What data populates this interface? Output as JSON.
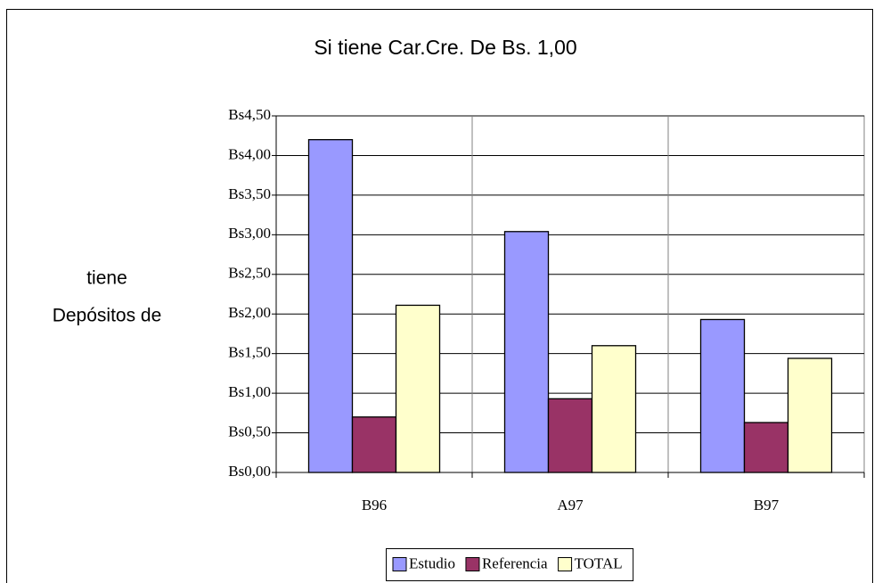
{
  "chart_data": {
    "type": "bar",
    "title": "Si tiene Car.Cre. De Bs. 1,00",
    "ylabel": [
      "tiene",
      "Depósitos de"
    ],
    "categories": [
      "B96",
      "A97",
      "B97"
    ],
    "series": [
      {
        "name": "Estudio",
        "color": "#9999ff",
        "values": [
          4.2,
          3.04,
          1.93
        ]
      },
      {
        "name": "Referencia",
        "color": "#993366",
        "values": [
          0.7,
          0.93,
          0.63
        ]
      },
      {
        "name": "TOTAL",
        "color": "#ffffcc",
        "values": [
          2.11,
          1.6,
          1.44
        ]
      }
    ],
    "ylim": [
      0,
      4.5
    ],
    "yticks": [
      {
        "value": 0,
        "label": "Bs0,00"
      },
      {
        "value": 0.5,
        "label": "Bs0,50"
      },
      {
        "value": 1,
        "label": "Bs1,00"
      },
      {
        "value": 1.5,
        "label": "Bs1,50"
      },
      {
        "value": 2,
        "label": "Bs2,00"
      },
      {
        "value": 2.5,
        "label": "Bs2,50"
      },
      {
        "value": 3,
        "label": "Bs3,00"
      },
      {
        "value": 3.5,
        "label": "Bs3,50"
      },
      {
        "value": 4,
        "label": "Bs4,00"
      },
      {
        "value": 4.5,
        "label": "Bs4,50"
      }
    ],
    "grid": true,
    "legend": "bottom"
  }
}
